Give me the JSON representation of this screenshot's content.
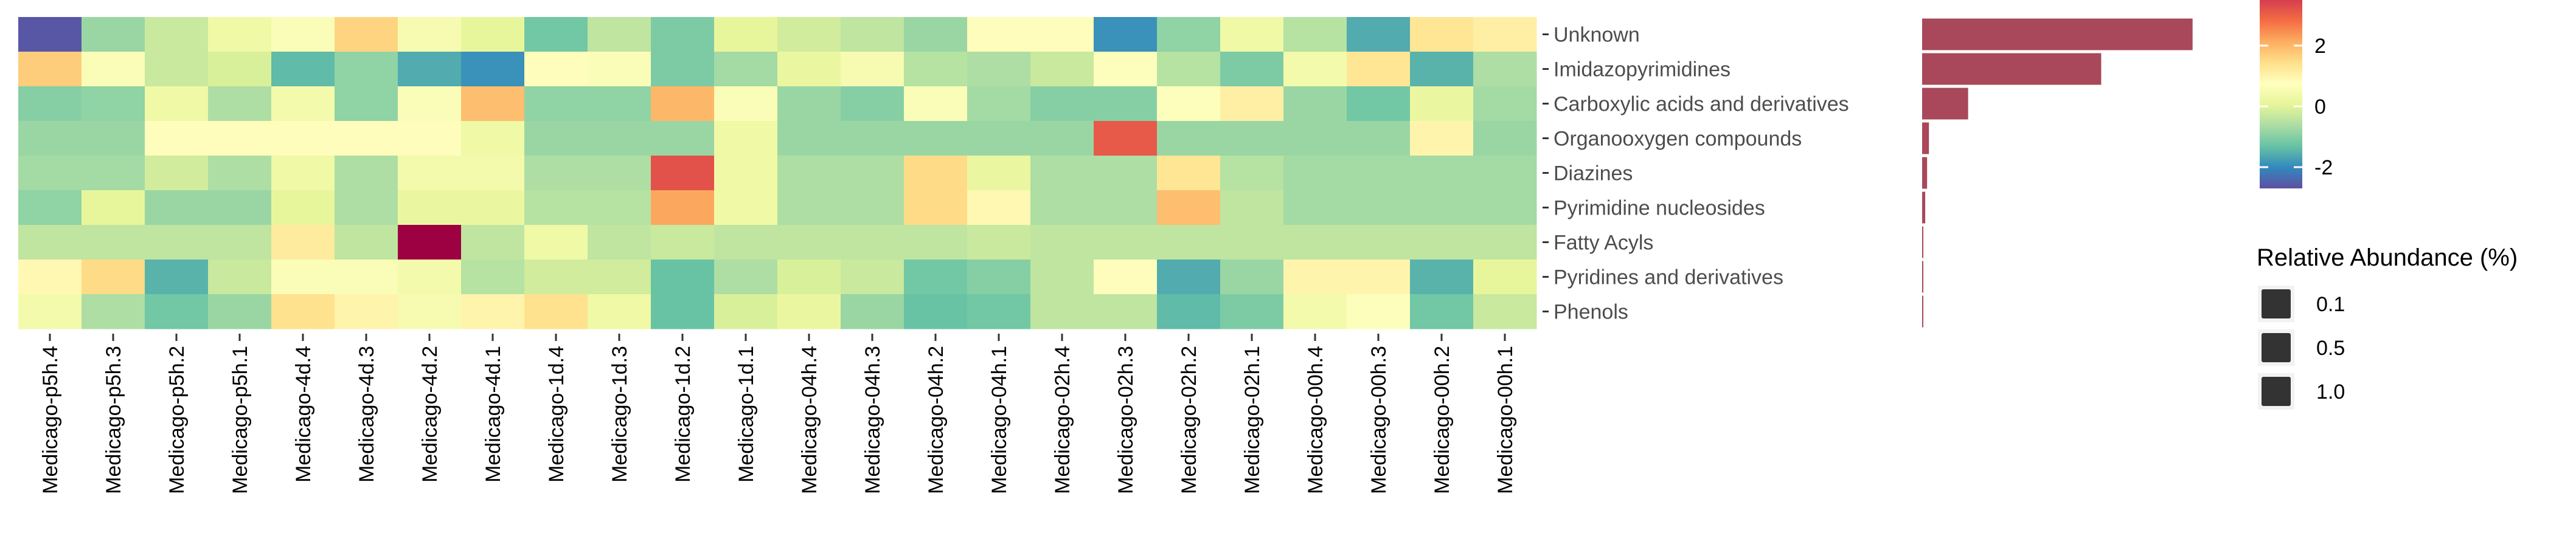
{
  "chart_data": [
    {
      "type": "heatmap",
      "title": "",
      "xlabel": "",
      "ylabel": "",
      "columns": [
        "Medicago-p5h.4",
        "Medicago-p5h.3",
        "Medicago-p5h.2",
        "Medicago-p5h.1",
        "Medicago-4d.4",
        "Medicago-4d.3",
        "Medicago-4d.2",
        "Medicago-4d.1",
        "Medicago-1d.4",
        "Medicago-1d.3",
        "Medicago-1d.2",
        "Medicago-1d.1",
        "Medicago-04h.4",
        "Medicago-04h.3",
        "Medicago-04h.2",
        "Medicago-04h.1",
        "Medicago-02h.4",
        "Medicago-02h.3",
        "Medicago-02h.2",
        "Medicago-02h.1",
        "Medicago-00h.4",
        "Medicago-00h.3",
        "Medicago-00h.2",
        "Medicago-00h.1"
      ],
      "rows": [
        "Unknown",
        "Imidazopyrimidines",
        "Carboxylic acids and derivatives",
        "Organooxygen compounds",
        "Diazines",
        "Pyrimidine nucleosides",
        "Fatty Acyls",
        "Pyridines and derivatives",
        "Phenols"
      ],
      "values": [
        [
          -2.6,
          -0.8,
          -0.3,
          0.3,
          0.6,
          1.6,
          0.5,
          0.1,
          -1.2,
          -0.4,
          -1.1,
          0.1,
          -0.2,
          -0.4,
          -0.8,
          0.8,
          0.8,
          -1.9,
          -0.9,
          0.3,
          -0.5,
          -1.6,
          1.3,
          1.1
        ],
        [
          1.7,
          0.6,
          -0.3,
          -0.1,
          -1.4,
          -0.9,
          -1.6,
          -1.9,
          0.8,
          0.6,
          -1.1,
          -0.7,
          0.2,
          0.5,
          -0.5,
          -0.6,
          -0.3,
          0.7,
          -0.5,
          -1.1,
          0.4,
          1.3,
          -1.5,
          -0.6
        ],
        [
          -1.0,
          -0.9,
          0.3,
          -0.6,
          0.4,
          -0.9,
          0.6,
          1.9,
          -0.9,
          -0.9,
          2.0,
          0.6,
          -0.8,
          -1.0,
          0.6,
          -0.7,
          -1.0,
          -1.0,
          0.7,
          1.1,
          -0.8,
          -1.2,
          0.2,
          -0.7
        ],
        [
          -0.8,
          -0.8,
          0.8,
          0.8,
          0.8,
          0.8,
          0.8,
          0.3,
          -0.8,
          -0.8,
          -0.8,
          0.3,
          -0.8,
          -0.8,
          -0.8,
          -0.8,
          -0.8,
          3.1,
          -0.8,
          -0.8,
          -0.8,
          -0.8,
          1.0,
          -0.8
        ],
        [
          -0.7,
          -0.7,
          -0.2,
          -0.6,
          0.3,
          -0.6,
          0.4,
          0.4,
          -0.6,
          -0.6,
          3.2,
          0.3,
          -0.6,
          -0.6,
          1.5,
          0.2,
          -0.6,
          -0.6,
          1.3,
          -0.5,
          -0.7,
          -0.7,
          -0.7,
          -0.7
        ],
        [
          -0.9,
          0.1,
          -0.8,
          -0.8,
          0.1,
          -0.6,
          0.2,
          0.2,
          -0.5,
          -0.5,
          2.2,
          0.3,
          -0.6,
          -0.6,
          1.5,
          0.9,
          -0.6,
          -0.6,
          1.9,
          -0.4,
          -0.7,
          -0.7,
          -0.7,
          -0.7
        ],
        [
          -0.4,
          -0.4,
          -0.4,
          -0.4,
          1.2,
          -0.4,
          4.5,
          -0.4,
          0.3,
          -0.4,
          -0.3,
          -0.4,
          -0.4,
          -0.4,
          -0.4,
          -0.3,
          -0.4,
          -0.4,
          -0.4,
          -0.4,
          -0.4,
          -0.4,
          -0.4,
          -0.4
        ],
        [
          0.9,
          1.5,
          -1.5,
          -0.3,
          0.6,
          0.6,
          0.4,
          -0.5,
          -0.2,
          -0.2,
          -1.3,
          -0.6,
          -0.1,
          -0.3,
          -1.2,
          -1.0,
          -0.4,
          0.8,
          -1.6,
          -0.8,
          1.0,
          1.0,
          -1.5,
          0.1
        ],
        [
          0.4,
          -0.6,
          -1.2,
          -0.8,
          1.4,
          1.0,
          0.5,
          1.0,
          1.4,
          0.3,
          -1.3,
          -0.1,
          0.2,
          -0.8,
          -1.3,
          -1.2,
          -0.4,
          -0.4,
          -1.4,
          -1.1,
          0.4,
          0.7,
          -1.2,
          -0.3
        ]
      ]
    },
    {
      "type": "bar",
      "orientation": "horizontal",
      "title": "",
      "xlabel": "",
      "ylabel": "",
      "categories": [
        "Unknown",
        "Imidazopyrimidines",
        "Carboxylic acids and derivatives",
        "Organooxygen compounds",
        "Diazines",
        "Pyrimidine nucleosides",
        "Fatty Acyls",
        "Pyridines and derivatives",
        "Phenols"
      ],
      "values": [
        43.5,
        28.8,
        7.4,
        1.1,
        0.8,
        0.5,
        0.1,
        0.0,
        0.0
      ],
      "xlim": [
        0,
        45
      ],
      "color": "#a8485a",
      "axis_visible": false
    }
  ],
  "legend_colorbar": {
    "ticks": [
      {
        "label": "2",
        "value": 2
      },
      {
        "label": "0",
        "value": 0
      },
      {
        "label": "-2",
        "value": -2
      }
    ],
    "range": [
      -2.7,
      3.5
    ]
  },
  "legend_size": {
    "title": "Relative Abundance (%)",
    "items": [
      "0.1",
      "0.5",
      "1.0"
    ]
  },
  "colors": {
    "palette": [
      "#5e4fa2",
      "#3288bd",
      "#66c2a5",
      "#abdda4",
      "#e6f598",
      "#ffffbf",
      "#fee08b",
      "#fdae61",
      "#f46d43",
      "#d53e4f",
      "#9e0142"
    ],
    "bar": "#a8485a",
    "text": "#4d4d4d",
    "tick": "#333333",
    "legend_key": "#333333"
  }
}
